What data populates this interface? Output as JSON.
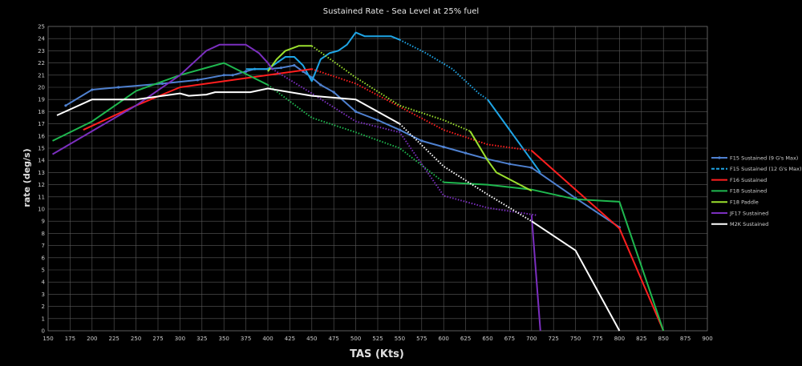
{
  "chart_data": {
    "type": "line",
    "title": "Sustained Rate - Sea Level at 25% fuel",
    "xlabel": "TAS (Kts)",
    "ylabel": "rate (deg/s)",
    "xlim": [
      150,
      900
    ],
    "ylim": [
      0,
      25
    ],
    "x_ticks": [
      150,
      175,
      200,
      225,
      250,
      275,
      300,
      325,
      350,
      375,
      400,
      425,
      450,
      475,
      500,
      525,
      550,
      575,
      600,
      625,
      650,
      675,
      700,
      725,
      750,
      775,
      800,
      825,
      850,
      875,
      900
    ],
    "y_ticks": [
      0,
      1,
      2,
      3,
      4,
      5,
      6,
      7,
      8,
      9,
      10,
      11,
      12,
      13,
      14,
      15,
      16,
      17,
      18,
      19,
      20,
      21,
      22,
      23,
      24,
      25
    ],
    "grid": true,
    "legend_position": "right",
    "series": [
      {
        "name": "F15 Sustained (9 G's Max)",
        "color": "#4f81d0",
        "style": "solid-markers",
        "points": [
          [
            170,
            18.5
          ],
          [
            200,
            19.8
          ],
          [
            230,
            20.0
          ],
          [
            280,
            20.3
          ],
          [
            320,
            20.6
          ],
          [
            350,
            21.0
          ],
          [
            360,
            21.0
          ],
          [
            375,
            21.3
          ],
          [
            385,
            21.5
          ],
          [
            400,
            21.5
          ],
          [
            415,
            21.6
          ],
          [
            430,
            21.8
          ],
          [
            440,
            21.3
          ],
          [
            450,
            20.8
          ],
          [
            460,
            20.2
          ],
          [
            475,
            19.6
          ],
          [
            500,
            18.0
          ],
          [
            525,
            17.3
          ],
          [
            550,
            16.5
          ],
          [
            575,
            15.6
          ],
          [
            600,
            15.1
          ],
          [
            625,
            14.6
          ],
          [
            650,
            14.1
          ],
          [
            675,
            13.7
          ],
          [
            700,
            13.4
          ],
          [
            750,
            10.9
          ],
          [
            800,
            8.5
          ]
        ]
      },
      {
        "name": "F15 Sustained (12 G's Max)",
        "color": "#1fa5e6",
        "style": "solid-then-dotted",
        "solid_points": [
          [
            375,
            21.5
          ],
          [
            400,
            21.5
          ],
          [
            420,
            22.5
          ],
          [
            430,
            22.5
          ],
          [
            440,
            21.8
          ],
          [
            450,
            20.5
          ],
          [
            460,
            22.3
          ],
          [
            470,
            22.8
          ],
          [
            480,
            23.0
          ],
          [
            490,
            23.5
          ],
          [
            500,
            24.5
          ],
          [
            510,
            24.2
          ],
          [
            540,
            24.2
          ],
          [
            550,
            23.9
          ]
        ],
        "dotted_points": [
          [
            550,
            23.9
          ],
          [
            580,
            22.8
          ],
          [
            610,
            21.5
          ],
          [
            640,
            19.5
          ],
          [
            650,
            19.0
          ]
        ],
        "tail_points": [
          [
            650,
            19.0
          ],
          [
            680,
            16.0
          ],
          [
            710,
            13.0
          ]
        ]
      },
      {
        "name": "F16 Sustained",
        "color": "#ff1f1f",
        "style": "solid-then-dotted",
        "solid_points": [
          [
            190,
            16.5
          ],
          [
            250,
            18.5
          ],
          [
            300,
            20.0
          ],
          [
            350,
            20.5
          ],
          [
            400,
            21.0
          ],
          [
            450,
            21.5
          ]
        ],
        "dotted_points": [
          [
            450,
            21.5
          ],
          [
            500,
            20.3
          ],
          [
            550,
            18.4
          ],
          [
            600,
            16.5
          ],
          [
            650,
            15.3
          ],
          [
            700,
            14.8
          ]
        ],
        "tail_points": [
          [
            700,
            14.8
          ],
          [
            750,
            11.6
          ],
          [
            800,
            8.4
          ],
          [
            850,
            0
          ]
        ]
      },
      {
        "name": "F18 Sustained",
        "color": "#1fb84f",
        "style": "solid-then-dotted",
        "solid_points": [
          [
            155,
            15.6
          ],
          [
            200,
            17.2
          ],
          [
            250,
            19.7
          ],
          [
            300,
            21.0
          ],
          [
            350,
            22.0
          ],
          [
            400,
            20.2
          ]
        ],
        "dotted_points": [
          [
            400,
            20.2
          ],
          [
            450,
            17.5
          ],
          [
            500,
            16.3
          ],
          [
            550,
            15.0
          ],
          [
            600,
            12.2
          ]
        ],
        "tail_points": [
          [
            600,
            12.2
          ],
          [
            650,
            12.0
          ],
          [
            700,
            11.6
          ],
          [
            750,
            10.8
          ],
          [
            800,
            10.6
          ],
          [
            850,
            0
          ]
        ]
      },
      {
        "name": "F18 Paddle",
        "color": "#9be02e",
        "style": "solid-then-dotted",
        "solid_points": [
          [
            400,
            21.3
          ],
          [
            410,
            22.3
          ],
          [
            420,
            23.0
          ],
          [
            435,
            23.4
          ],
          [
            450,
            23.4
          ]
        ],
        "dotted_points": [
          [
            450,
            23.4
          ],
          [
            500,
            20.8
          ],
          [
            550,
            18.5
          ],
          [
            600,
            17.3
          ],
          [
            630,
            16.4
          ]
        ],
        "tail_points": [
          [
            630,
            16.4
          ],
          [
            650,
            14.0
          ],
          [
            660,
            13.0
          ],
          [
            700,
            11.5
          ]
        ]
      },
      {
        "name": "JF17 Sustained",
        "color": "#7b2fbf",
        "style": "solid-then-dotted",
        "solid_points": [
          [
            155,
            14.5
          ],
          [
            200,
            16.4
          ],
          [
            250,
            18.5
          ],
          [
            300,
            21.0
          ],
          [
            330,
            23.0
          ],
          [
            345,
            23.5
          ],
          [
            375,
            23.5
          ],
          [
            390,
            22.8
          ],
          [
            400,
            22.0
          ],
          [
            405,
            21.5
          ]
        ],
        "dotted_points": [
          [
            405,
            21.5
          ],
          [
            450,
            19.5
          ],
          [
            500,
            17.2
          ],
          [
            550,
            16.3
          ],
          [
            600,
            11.1
          ],
          [
            650,
            10.1
          ],
          [
            705,
            9.5
          ]
        ],
        "tail_points": [
          [
            700,
            9.5
          ],
          [
            710,
            0
          ]
        ]
      },
      {
        "name": "M2K Sustained",
        "color": "#ffffff",
        "style": "solid-then-dotted",
        "solid_points": [
          [
            160,
            17.7
          ],
          [
            200,
            19.0
          ],
          [
            250,
            19.0
          ],
          [
            300,
            19.5
          ],
          [
            310,
            19.3
          ],
          [
            330,
            19.4
          ],
          [
            340,
            19.6
          ],
          [
            380,
            19.6
          ],
          [
            400,
            19.9
          ],
          [
            450,
            19.3
          ],
          [
            500,
            19.0
          ],
          [
            550,
            17.0
          ]
        ],
        "dotted_points": [
          [
            550,
            17.0
          ],
          [
            600,
            13.5
          ],
          [
            650,
            11.2
          ],
          [
            700,
            9.0
          ]
        ],
        "tail_points": [
          [
            700,
            9.0
          ],
          [
            750,
            6.6
          ],
          [
            800,
            0
          ]
        ]
      }
    ]
  }
}
